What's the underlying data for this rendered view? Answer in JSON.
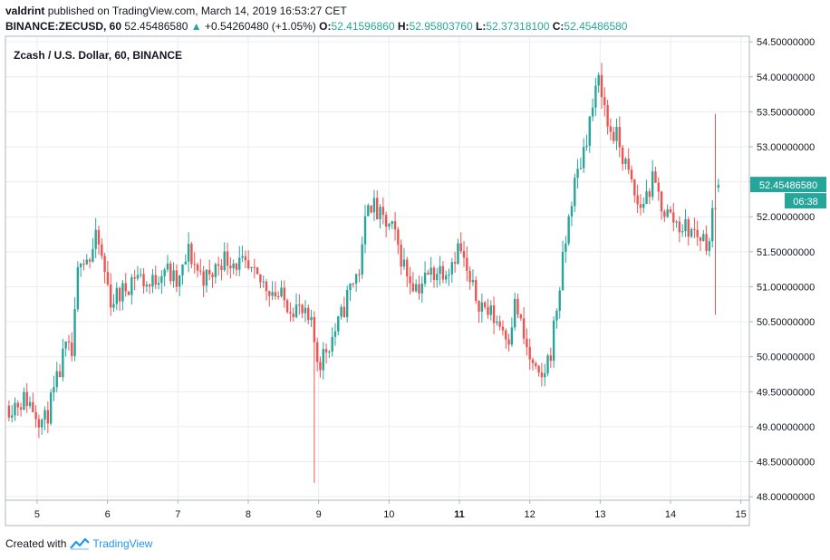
{
  "header": {
    "user": "valdrint",
    "published_text": "published on TradingView.com, March 14, 2019 16:53:27 CET",
    "symbol": "BINANCE:ZECUSD, 60",
    "last": "52.45486580",
    "change": "+0.54260480 (+1.05%)",
    "o_label": "O:",
    "o_value": "52.41596860",
    "h_label": "H:",
    "h_value": "52.95803760",
    "l_label": "L:",
    "l_value": "52.37318100",
    "c_label": "C:",
    "c_value": "52.45486580"
  },
  "footer": {
    "created_with": "Created with",
    "brand": "TradingView"
  },
  "colors": {
    "up": "#26a69a",
    "down": "#ef5350",
    "grid": "#e9ecf1",
    "axis_text": "#131722",
    "price_label_bg": "#26a69a"
  },
  "chart_data": {
    "type": "candlestick",
    "title": "Zcash / U.S. Dollar, 60, BINANCE",
    "xlabel": "",
    "ylabel": "",
    "ylim": [
      47.95,
      54.58
    ],
    "x_ticks": [
      {
        "label": "5",
        "bold": false
      },
      {
        "label": "6",
        "bold": false
      },
      {
        "label": "7",
        "bold": false
      },
      {
        "label": "8",
        "bold": false
      },
      {
        "label": "9",
        "bold": false
      },
      {
        "label": "10",
        "bold": false
      },
      {
        "label": "11",
        "bold": true
      },
      {
        "label": "12",
        "bold": false
      },
      {
        "label": "13",
        "bold": false
      },
      {
        "label": "14",
        "bold": false
      },
      {
        "label": "15",
        "bold": false
      }
    ],
    "y_ticks": [
      "54.50000000",
      "54.00000000",
      "53.50000000",
      "53.00000000",
      "52.50000000",
      "52.00000000",
      "51.50000000",
      "51.00000000",
      "50.50000000",
      "50.00000000",
      "49.50000000",
      "49.00000000",
      "48.50000000",
      "48.00000000"
    ],
    "last_price_label": "52.45486580",
    "countdown_label": "06:38",
    "grid": true,
    "anchors": [
      [
        4.6,
        49.3
      ],
      [
        4.85,
        49.4
      ],
      [
        5.1,
        49.05
      ],
      [
        5.25,
        49.5
      ],
      [
        5.4,
        50.1
      ],
      [
        5.5,
        50.0
      ],
      [
        5.6,
        51.5
      ],
      [
        5.75,
        51.4
      ],
      [
        5.85,
        51.7
      ],
      [
        6.05,
        50.8
      ],
      [
        6.2,
        50.9
      ],
      [
        6.4,
        51.2
      ],
      [
        6.6,
        51.0
      ],
      [
        6.8,
        51.3
      ],
      [
        7.0,
        51.0
      ],
      [
        7.15,
        51.5
      ],
      [
        7.3,
        51.2
      ],
      [
        7.45,
        51.1
      ],
      [
        7.6,
        51.4
      ],
      [
        7.75,
        51.4
      ],
      [
        7.9,
        51.3
      ],
      [
        8.1,
        51.1
      ],
      [
        8.3,
        51.0
      ],
      [
        8.5,
        50.8
      ],
      [
        8.7,
        50.7
      ],
      [
        8.9,
        50.4
      ],
      [
        9.0,
        49.9
      ],
      [
        9.15,
        50.2
      ],
      [
        9.3,
        50.5
      ],
      [
        9.45,
        51.0
      ],
      [
        9.6,
        51.3
      ],
      [
        9.7,
        52.3
      ],
      [
        9.85,
        52.0
      ],
      [
        9.95,
        51.9
      ],
      [
        10.05,
        51.8
      ],
      [
        10.25,
        51.2
      ],
      [
        10.4,
        51.0
      ],
      [
        10.6,
        51.2
      ],
      [
        10.85,
        51.3
      ],
      [
        11.0,
        51.6
      ],
      [
        11.15,
        51.0
      ],
      [
        11.35,
        50.7
      ],
      [
        11.55,
        50.5
      ],
      [
        11.7,
        50.3
      ],
      [
        11.8,
        50.8
      ],
      [
        11.9,
        50.3
      ],
      [
        12.05,
        49.8
      ],
      [
        12.15,
        49.6
      ],
      [
        12.3,
        50.1
      ],
      [
        12.45,
        51.2
      ],
      [
        12.6,
        52.3
      ],
      [
        12.75,
        52.9
      ],
      [
        12.9,
        53.6
      ],
      [
        13.0,
        54.0
      ],
      [
        13.1,
        53.3
      ],
      [
        13.25,
        53.1
      ],
      [
        13.4,
        52.6
      ],
      [
        13.55,
        52.1
      ],
      [
        13.75,
        52.5
      ],
      [
        13.9,
        52.1
      ],
      [
        14.1,
        51.9
      ],
      [
        14.3,
        51.8
      ],
      [
        14.45,
        51.7
      ],
      [
        14.55,
        51.65
      ],
      [
        14.62,
        52.2
      ],
      [
        14.68,
        52.45
      ]
    ],
    "candle_count": 238,
    "seed": 11,
    "extreme_wicks": [
      {
        "x": 8.94,
        "low": 48.2
      },
      {
        "x": 13.03,
        "high": 54.2
      },
      {
        "x": 14.65,
        "high": 53.47,
        "low": 50.6
      },
      {
        "x": 14.72,
        "high": 52.96
      }
    ]
  }
}
